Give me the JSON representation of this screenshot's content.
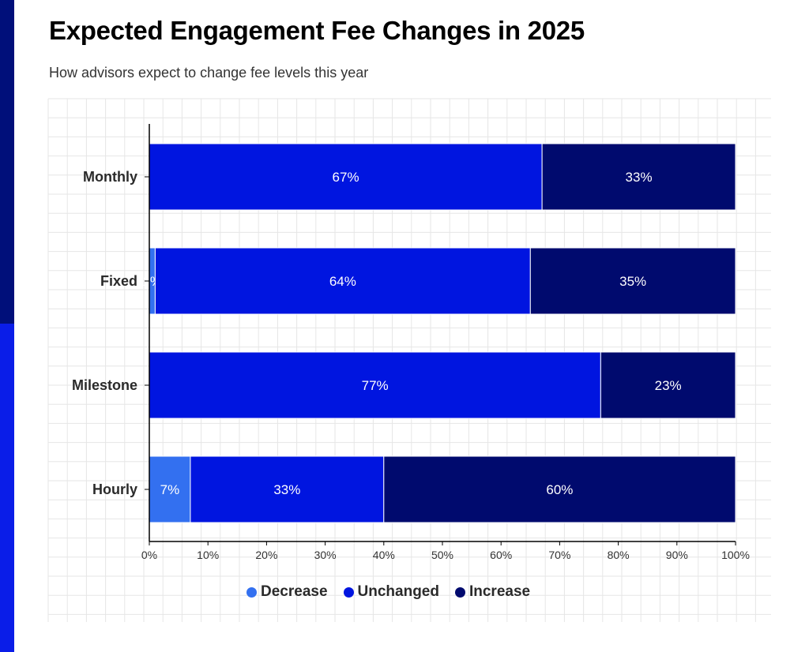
{
  "title": "Expected Engagement Fee Changes in 2025",
  "subtitle": "How advisors expect to change fee levels this year",
  "colors": {
    "accent_dark": "#000f7a",
    "accent_bright": "#0a1de8",
    "grid": "#e6e6e6",
    "axis": "#000000"
  },
  "chart_data": {
    "type": "bar",
    "orientation": "horizontal",
    "stacked": true,
    "categories": [
      "Monthly",
      "Fixed",
      "Milestone",
      "Hourly"
    ],
    "series": [
      {
        "name": "Decrease",
        "color": "#3370f0",
        "values": [
          0,
          1,
          0,
          7
        ]
      },
      {
        "name": "Unchanged",
        "color": "#0015e0",
        "values": [
          67,
          64,
          77,
          33
        ]
      },
      {
        "name": "Increase",
        "color": "#000a6e",
        "values": [
          33,
          35,
          23,
          60
        ]
      }
    ],
    "xlim": [
      0,
      100
    ],
    "x_ticks": [
      "0%",
      "10%",
      "20%",
      "30%",
      "40%",
      "50%",
      "60%",
      "70%",
      "80%",
      "90%",
      "100%"
    ],
    "value_suffix": "%",
    "grid": true,
    "legend_position": "bottom-center"
  }
}
